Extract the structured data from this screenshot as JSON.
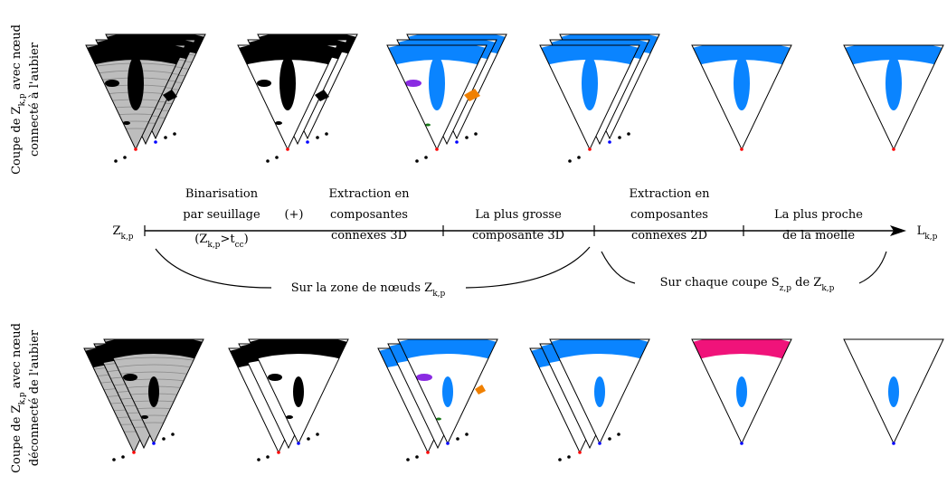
{
  "row_labels": [
    {
      "line1": [
        "Coupe de Z",
        "k,p",
        " avec nœud"
      ],
      "line2": "connecté à l'aubier"
    },
    {
      "line1": [
        "Coupe de Z",
        "k,p",
        " avec nœud"
      ],
      "line2": "déconnecté de l'aubier"
    }
  ],
  "timeline": {
    "start": [
      "Z",
      "k,p"
    ],
    "end": [
      "L",
      "k,p"
    ]
  },
  "steps": [
    {
      "lines": [
        "Binarisation",
        "par seuillage"
      ],
      "condition": [
        "(Z",
        "k,p",
        ">t",
        "cc",
        ")"
      ]
    },
    {
      "lines": [
        "(+)"
      ]
    },
    {
      "lines": [
        "Extraction en",
        "composantes",
        "connexes 3D"
      ]
    },
    {
      "lines": [
        "La plus grosse",
        "composante 3D"
      ]
    },
    {
      "lines": [
        "Extraction en",
        "composantes",
        "connexes 2D"
      ]
    },
    {
      "lines": [
        "La plus proche",
        "de la moelle"
      ]
    }
  ],
  "braces": [
    [
      "Sur la zone de nœuds Z",
      "k,p"
    ],
    [
      "Sur chaque coupe S",
      "z,p",
      " de Z",
      "k,p"
    ]
  ]
}
